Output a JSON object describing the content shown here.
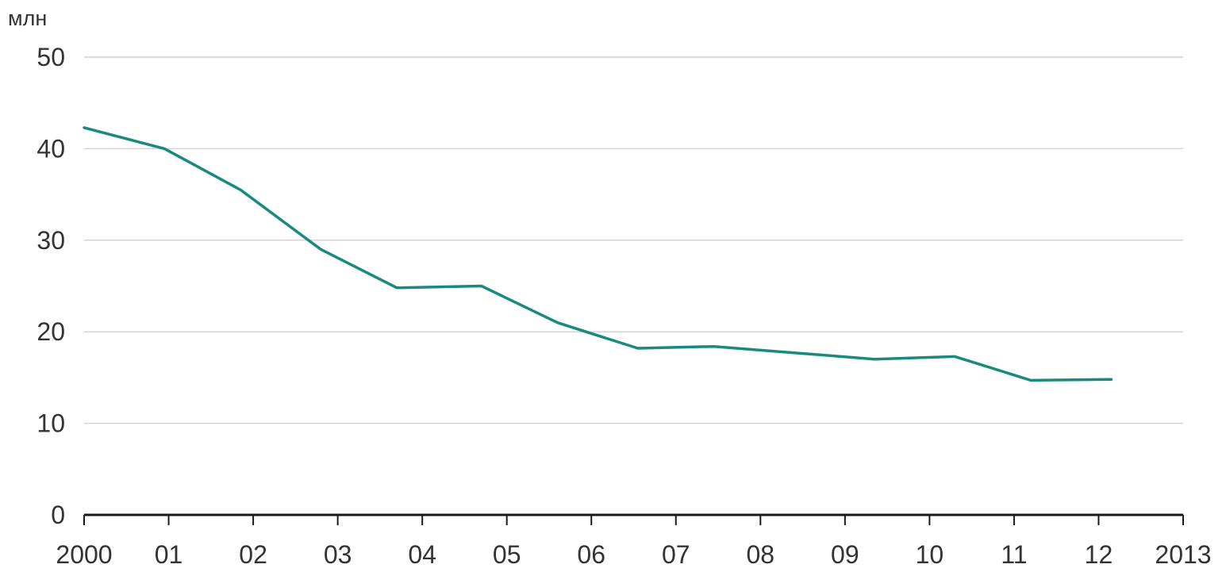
{
  "chart_data": {
    "type": "line",
    "y_unit_label": "млн",
    "x_range": [
      2000,
      2013
    ],
    "ylim": [
      0,
      50
    ],
    "y_ticks": [
      0,
      10,
      20,
      30,
      40,
      50
    ],
    "x_ticks": [
      {
        "value": 2000,
        "label": "2000"
      },
      {
        "value": 2001,
        "label": "01"
      },
      {
        "value": 2002,
        "label": "02"
      },
      {
        "value": 2003,
        "label": "03"
      },
      {
        "value": 2004,
        "label": "04"
      },
      {
        "value": 2005,
        "label": "05"
      },
      {
        "value": 2006,
        "label": "06"
      },
      {
        "value": 2007,
        "label": "07"
      },
      {
        "value": 2008,
        "label": "08"
      },
      {
        "value": 2009,
        "label": "09"
      },
      {
        "value": 2010,
        "label": "10"
      },
      {
        "value": 2011,
        "label": "11"
      },
      {
        "value": 2012,
        "label": "12"
      },
      {
        "value": 2013,
        "label": "2013"
      }
    ],
    "grid": true,
    "series": [
      {
        "color": "#1a8a7f",
        "points": [
          [
            2000.0,
            42.3
          ],
          [
            2000.95,
            40.0
          ],
          [
            2001.85,
            35.5
          ],
          [
            2002.8,
            29.0
          ],
          [
            2003.7,
            24.8
          ],
          [
            2004.7,
            25.0
          ],
          [
            2005.6,
            21.0
          ],
          [
            2006.55,
            18.2
          ],
          [
            2007.45,
            18.4
          ],
          [
            2008.4,
            17.7
          ],
          [
            2009.35,
            17.0
          ],
          [
            2010.3,
            17.3
          ],
          [
            2011.2,
            14.7
          ],
          [
            2012.15,
            14.8
          ]
        ]
      }
    ]
  }
}
